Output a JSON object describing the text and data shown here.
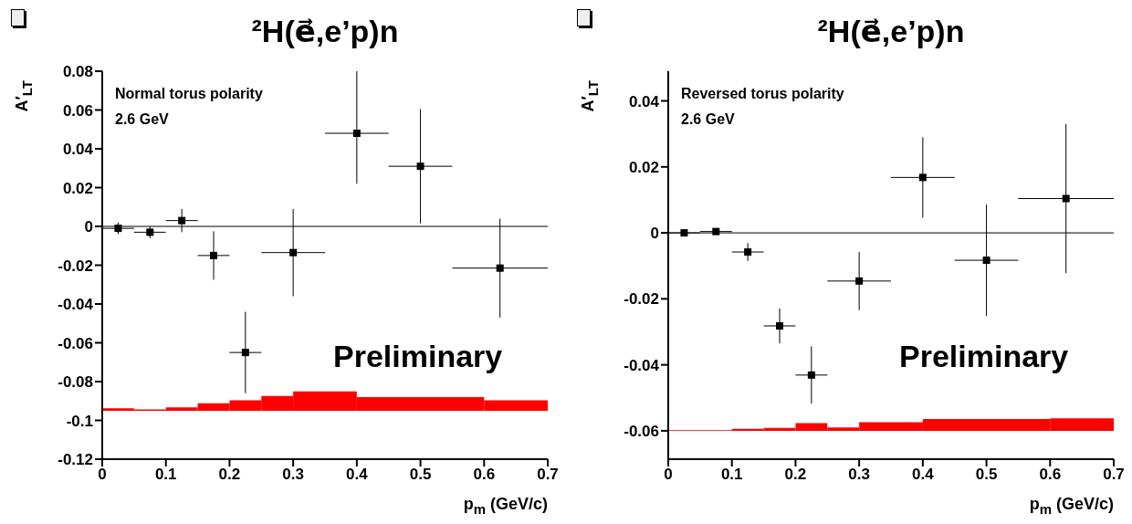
{
  "chart_data": [
    {
      "type": "scatter",
      "title": "²H(e⃗,e’p)n",
      "xlabel": "p$_{m}$ (GeV/c)",
      "ylabel": "A′$_{LT}$",
      "annotations": [
        "Normal torus polarity",
        "2.6 GeV",
        "Preliminary"
      ],
      "xlim": [
        0,
        0.7
      ],
      "xticks": [
        0,
        0.1,
        0.2,
        0.3,
        0.4,
        0.5,
        0.6,
        0.7
      ],
      "ylim": [
        -0.12,
        0.08
      ],
      "yticks": [
        -0.12,
        -0.1,
        -0.08,
        -0.06,
        -0.04,
        -0.02,
        0,
        0.02,
        0.04,
        0.06,
        0.08
      ],
      "marker": "square",
      "ref_lines": [
        {
          "axis": "y",
          "value": 0,
          "color": "#000000"
        }
      ],
      "series": [
        {
          "color": "#000000",
          "x": [
            0.025,
            0.075,
            0.125,
            0.175,
            0.225,
            0.3,
            0.4,
            0.5,
            0.625
          ],
          "values": [
            -0.001,
            -0.003,
            0.003,
            -0.015,
            -0.065,
            -0.0135,
            0.048,
            0.031,
            -0.0215
          ],
          "errors": [
            0.003,
            0.003,
            0.006,
            0.0125,
            0.021,
            0.0225,
            [
              0.022,
              0.08
            ],
            0.0295,
            0.0255
          ],
          "xerrors": [
            0.025,
            0.025,
            0.025,
            0.025,
            0.025,
            0.05,
            0.05,
            0.05,
            0.075
          ]
        },
        {
          "type": "histogram",
          "color": "#ff0000",
          "bins": [
            0,
            0.05,
            0.1,
            0.15,
            0.2,
            0.25,
            0.3,
            0.4,
            0.6,
            0.7
          ],
          "base": [
            -0.095,
            -0.095,
            -0.095,
            -0.095,
            -0.095,
            -0.095,
            -0.095,
            -0.095,
            -0.095
          ],
          "values": [
            0.0012,
            0.0007,
            0.0017,
            0.0038,
            0.0054,
            0.0076,
            0.01,
            0.007,
            0.0053
          ]
        }
      ]
    },
    {
      "type": "scatter",
      "title": "²H(e⃗,e’p)n",
      "xlabel": "p$_{m}$ (GeV/c)",
      "ylabel": "A′$_{LT}$",
      "annotations": [
        "Reversed torus polarity",
        "2.6 GeV",
        "Preliminary"
      ],
      "xlim": [
        0,
        0.7
      ],
      "xticks": [
        0,
        0.1,
        0.2,
        0.3,
        0.4,
        0.5,
        0.6,
        0.7
      ],
      "ylim": [
        -0.0686,
        0.049
      ],
      "yticks": [
        -0.06,
        -0.04,
        -0.02,
        0,
        0.02,
        0.04
      ],
      "marker": "square",
      "ref_lines": [
        {
          "axis": "y",
          "value": 0,
          "color": "#000000"
        }
      ],
      "series": [
        {
          "color": "#000000",
          "x": [
            0.025,
            0.075,
            0.125,
            0.175,
            0.225,
            0.3,
            0.4,
            0.5,
            0.625
          ],
          "values": [
            0,
            0.0004,
            -0.0058,
            -0.0282,
            -0.0431,
            -0.0146,
            0.0168,
            -0.0083,
            0.0104
          ],
          "errors": [
            0.001,
            0.001,
            0.0027,
            0.0053,
            0.0087,
            0.0088,
            0.0122,
            0.0169,
            0.0226
          ],
          "xerrors": [
            0.025,
            0.025,
            0.025,
            0.025,
            0.025,
            0.05,
            0.05,
            0.05,
            0.075
          ]
        },
        {
          "type": "histogram",
          "color": "#ff0000",
          "bins": [
            0,
            0.1,
            0.15,
            0.2,
            0.25,
            0.3,
            0.4,
            0.6,
            0.7
          ],
          "base": [
            -0.06,
            -0.06,
            -0.06,
            -0.06,
            -0.06,
            -0.06,
            -0.06,
            -0.06
          ],
          "values": [
            0.0002,
            0.0006,
            0.0009,
            0.0023,
            0.001,
            0.0026,
            0.0036,
            0.0038
          ]
        }
      ]
    }
  ]
}
